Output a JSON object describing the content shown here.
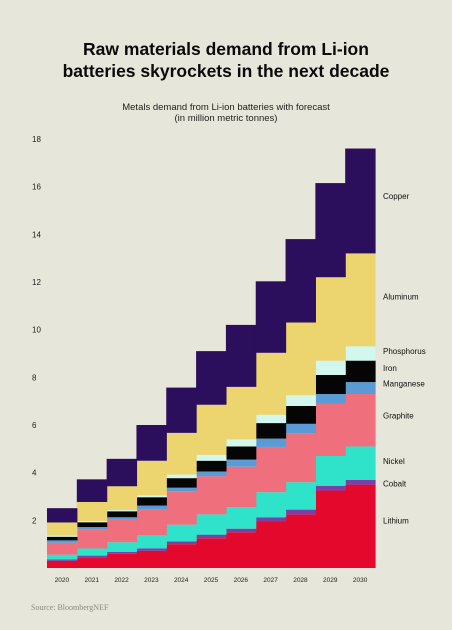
{
  "title": "Raw materials demand from Li-ion\nbatteries skyrockets in the next decade",
  "subtitle_line1": "Metals demand from Li-ion batteries with forecast",
  "subtitle_line2": "(in million metric tonnes)",
  "source": "Source: BloombergNEF",
  "chart_data": {
    "type": "area",
    "stacked": true,
    "step": true,
    "title": "Metals demand from Li-ion batteries with forecast",
    "ylabel": "(in million metric tonnes)",
    "ylim": [
      0,
      18
    ],
    "yticks": [
      2,
      4,
      6,
      8,
      10,
      12,
      14,
      16,
      18
    ],
    "grid": false,
    "legend": "right",
    "categories": [
      "2020",
      "2021",
      "2022",
      "2023",
      "2024",
      "2025",
      "2026",
      "2027",
      "2028",
      "2029",
      "2030"
    ],
    "series": [
      {
        "name": "Lithium",
        "color": "#e5082d",
        "values": [
          0.3,
          0.45,
          0.6,
          0.72,
          1.0,
          1.25,
          1.5,
          1.95,
          2.25,
          3.25,
          3.5
        ]
      },
      {
        "name": "Cobalt",
        "color": "#7a3fa8",
        "values": [
          0.06,
          0.07,
          0.08,
          0.1,
          0.12,
          0.15,
          0.15,
          0.18,
          0.2,
          0.2,
          0.2
        ]
      },
      {
        "name": "Nickel",
        "color": "#2ee3c9",
        "values": [
          0.2,
          0.3,
          0.4,
          0.55,
          0.7,
          0.85,
          0.9,
          1.05,
          1.15,
          1.25,
          1.4
        ]
      },
      {
        "name": "Graphite",
        "color": "#ef6f7d",
        "values": [
          0.5,
          0.8,
          0.95,
          1.1,
          1.4,
          1.6,
          1.7,
          1.9,
          2.05,
          2.2,
          2.2
        ]
      },
      {
        "name": "Manganese",
        "color": "#5a9bd5",
        "values": [
          0.1,
          0.1,
          0.1,
          0.15,
          0.15,
          0.2,
          0.3,
          0.35,
          0.4,
          0.4,
          0.5
        ]
      },
      {
        "name": "Iron",
        "color": "#050505",
        "values": [
          0.15,
          0.2,
          0.25,
          0.35,
          0.4,
          0.45,
          0.55,
          0.65,
          0.75,
          0.8,
          0.9
        ]
      },
      {
        "name": "Phosphorus",
        "color": "#d2f7ee",
        "values": [
          0.05,
          0.05,
          0.05,
          0.08,
          0.15,
          0.25,
          0.3,
          0.35,
          0.45,
          0.6,
          0.6
        ]
      },
      {
        "name": "Aluminum",
        "color": "#ecd46f",
        "values": [
          0.55,
          0.8,
          1.0,
          1.45,
          1.75,
          2.1,
          2.2,
          2.6,
          3.05,
          3.5,
          3.9
        ]
      },
      {
        "name": "Copper",
        "color": "#2b0f5c",
        "values": [
          0.6,
          0.95,
          1.15,
          1.5,
          1.9,
          2.25,
          2.6,
          3.0,
          3.5,
          3.95,
          4.4
        ]
      }
    ]
  }
}
